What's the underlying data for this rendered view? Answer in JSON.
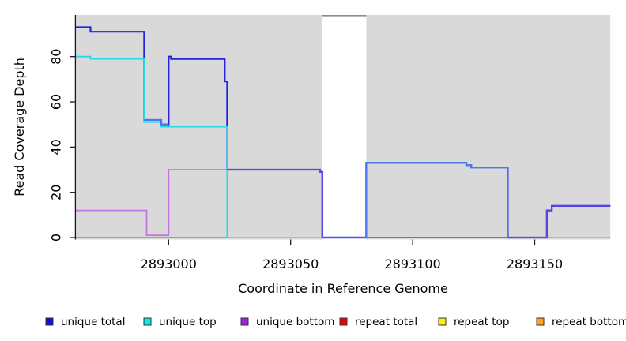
{
  "figure": {
    "x_axis": {
      "label": "Coordinate in Reference Genome",
      "ticks": [
        2893000,
        2893050,
        2893100,
        2893150
      ]
    },
    "y_axis": {
      "label": "Read Coverage Depth",
      "ticks": [
        0,
        20,
        40,
        60,
        80
      ]
    },
    "legend": [
      {
        "label": "unique total",
        "color": "#0b0bf0"
      },
      {
        "label": "unique top",
        "color": "#00eded"
      },
      {
        "label": "unique bottom",
        "color": "#a020f0"
      },
      {
        "label": "repeat total",
        "color": "#f00000"
      },
      {
        "label": "repeat top",
        "color": "#fdf000"
      },
      {
        "label": "repeat bottom",
        "color": "#ffa317"
      }
    ],
    "panel_color": "#d9d9d9",
    "gap_border_color": "#8c8c8c"
  },
  "chart_data": {
    "type": "line",
    "title": "",
    "xlabel": "Coordinate in Reference Genome",
    "ylabel": "Read Coverage Depth",
    "xlim": [
      2892962,
      2893181
    ],
    "ylim": [
      0,
      96
    ],
    "x_end": 2893181,
    "grid": false,
    "legend_position": "bottom",
    "shaded_regions": [
      {
        "from": 2892962,
        "to": 2893063,
        "color": "#d9d9d9"
      },
      {
        "from": 2893081,
        "to": 2893181,
        "color": "#d9d9d9"
      }
    ],
    "gap_region": {
      "from": 2893063,
      "to": 2893081
    },
    "series": [
      {
        "id": "repeat-total",
        "name": "repeat total",
        "line_color": "#e03030",
        "width": 1.8,
        "steps": [
          [
            2892962,
            0
          ]
        ]
      },
      {
        "id": "repeat-top",
        "name": "repeat top",
        "line_color": "#f2e931",
        "width": 1.8,
        "steps": [
          [
            2892962,
            0
          ]
        ]
      },
      {
        "id": "repeat-bottom",
        "name": "repeat bottom",
        "line_color": "#ff8c1a",
        "width": 2,
        "steps": [
          [
            2892962,
            0
          ]
        ]
      },
      {
        "id": "unique-bottom",
        "name": "unique bottom",
        "line_color": "#c473e0",
        "width": 1.8,
        "steps": [
          [
            2892962,
            12
          ],
          [
            2892991,
            1
          ],
          [
            2893000,
            30
          ],
          [
            2893062,
            29
          ],
          [
            2893063,
            0
          ],
          [
            2893155,
            12
          ],
          [
            2893157,
            14
          ]
        ]
      },
      {
        "id": "unique-total",
        "name": "unique total",
        "line_color": "#2323dc",
        "width": 2.2,
        "steps": [
          [
            2892962,
            93
          ],
          [
            2892968,
            91
          ],
          [
            2892990,
            52
          ],
          [
            2892997,
            50
          ],
          [
            2893000,
            80
          ],
          [
            2893001,
            79
          ],
          [
            2893023,
            69
          ],
          [
            2893024,
            30
          ],
          [
            2893062,
            29
          ],
          [
            2893063,
            0
          ],
          [
            2893081,
            33
          ],
          [
            2893122,
            32
          ],
          [
            2893124,
            31
          ],
          [
            2893139,
            0
          ],
          [
            2893155,
            12
          ],
          [
            2893157,
            14
          ]
        ]
      },
      {
        "id": "unique-top",
        "name": "unique top",
        "line_color": "#25d9e8",
        "width": 1.8,
        "steps": [
          [
            2892962,
            80
          ],
          [
            2892968,
            79
          ],
          [
            2892990,
            51
          ],
          [
            2892997,
            49
          ],
          [
            2893024,
            0
          ],
          [
            2893081,
            33
          ],
          [
            2893122,
            32
          ],
          [
            2893124,
            31
          ],
          [
            2893139,
            0
          ]
        ]
      }
    ],
    "rendered_overlaps": [
      {
        "id": "zero-green-left",
        "color": "#86d993",
        "width": 2,
        "verts": [
          [
            2893024,
            0
          ],
          [
            2893063,
            0
          ]
        ]
      },
      {
        "id": "zero-blue-band",
        "color": "#4056ee",
        "width": 2.2,
        "verts": [
          [
            2893063,
            0
          ],
          [
            2893081,
            0
          ]
        ]
      },
      {
        "id": "bright-blue-52",
        "color": "#4a78f2",
        "width": 2,
        "verts": [
          [
            2892990,
            52
          ],
          [
            2892997,
            52
          ],
          [
            2892997,
            50
          ],
          [
            2893000,
            50
          ]
        ]
      },
      {
        "id": "bright-blue-33",
        "color": "#4a78f2",
        "width": 2.2,
        "verts": [
          [
            2893081,
            0
          ],
          [
            2893081,
            33
          ],
          [
            2893122,
            33
          ],
          [
            2893122,
            32
          ],
          [
            2893124,
            32
          ],
          [
            2893124,
            31
          ],
          [
            2893139,
            31
          ],
          [
            2893139,
            0
          ]
        ]
      },
      {
        "id": "zero-crimson",
        "color": "#d94f6e",
        "width": 2,
        "verts": [
          [
            2893081,
            0
          ],
          [
            2893139,
            0
          ]
        ]
      },
      {
        "id": "violet-30",
        "color": "#5b46e6",
        "width": 2,
        "verts": [
          [
            2893024,
            30
          ],
          [
            2893062,
            30
          ],
          [
            2893062,
            29
          ],
          [
            2893063,
            29
          ],
          [
            2893063,
            0
          ]
        ]
      },
      {
        "id": "violet-right",
        "color": "#5b46e6",
        "width": 2,
        "verts": [
          [
            2893139,
            0
          ],
          [
            2893155,
            0
          ],
          [
            2893155,
            12
          ],
          [
            2893157,
            12
          ],
          [
            2893157,
            14
          ],
          [
            2893181,
            14
          ]
        ]
      },
      {
        "id": "zero-green-right",
        "color": "#86d993",
        "width": 2,
        "verts": [
          [
            2893156,
            0
          ],
          [
            2893181,
            0
          ]
        ]
      }
    ]
  }
}
